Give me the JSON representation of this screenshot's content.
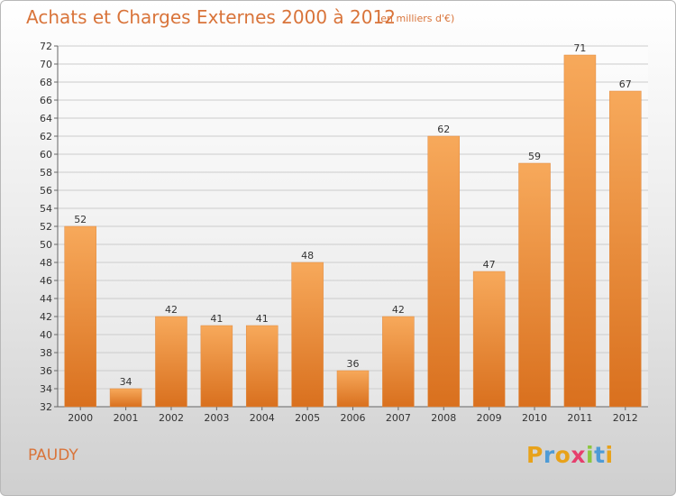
{
  "header": {
    "title": "Achats et Charges Externes 2000 à 2012",
    "subtitle": "(en milliers d'€)"
  },
  "footer": {
    "commune": "PAUDY",
    "logo_text": "Proxiti"
  },
  "colors": {
    "title": "#d9743a",
    "bar_light": "#f7a95b",
    "bar_dark": "#d9701e",
    "grid": "#cccccc"
  },
  "chart_data": {
    "type": "bar",
    "title": "Achats et Charges Externes 2000 à 2012",
    "subtitle": "(en milliers d'€)",
    "categories": [
      "2000",
      "2001",
      "2002",
      "2003",
      "2004",
      "2005",
      "2006",
      "2007",
      "2008",
      "2009",
      "2010",
      "2011",
      "2012"
    ],
    "values": [
      52,
      34,
      42,
      41,
      41,
      48,
      36,
      42,
      62,
      47,
      59,
      71,
      67
    ],
    "ylim": [
      32,
      72
    ],
    "yticks": [
      32,
      34,
      36,
      38,
      40,
      42,
      44,
      46,
      48,
      50,
      52,
      54,
      56,
      58,
      60,
      62,
      64,
      66,
      68,
      70,
      72
    ],
    "grid": true,
    "data_labels": true
  }
}
